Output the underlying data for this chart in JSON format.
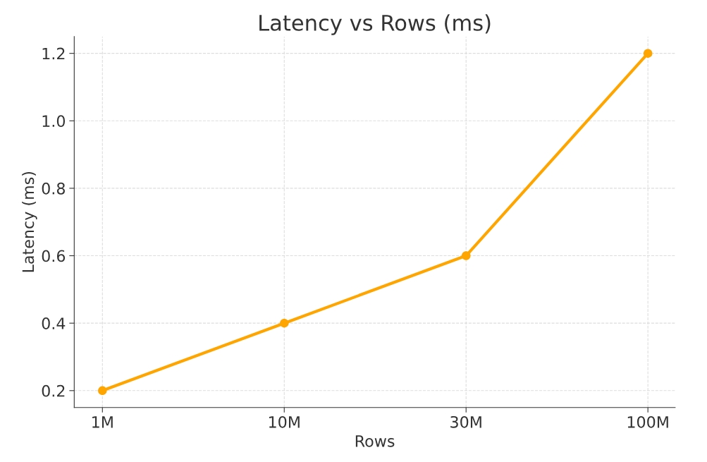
{
  "chart_data": {
    "type": "line",
    "title": "Latency vs Rows (ms)",
    "xlabel": "Rows",
    "ylabel": "Latency (ms)",
    "categories": [
      "1M",
      "10M",
      "30M",
      "100M"
    ],
    "series": [
      {
        "color": "#ffa500",
        "values": [
          0.2,
          0.4,
          0.6,
          1.2
        ]
      }
    ],
    "ylim": [
      0.15,
      1.25
    ],
    "yticks": [
      {
        "value": 0.2,
        "label": "0.2"
      },
      {
        "value": 0.4,
        "label": "0.4"
      },
      {
        "value": 0.6,
        "label": "0.6"
      },
      {
        "value": 0.8,
        "label": "0.8"
      },
      {
        "value": 1.0,
        "label": "1.0"
      },
      {
        "value": 1.2,
        "label": "1.2"
      }
    ],
    "grid": true,
    "marker": "circle",
    "line_style": "solid"
  }
}
